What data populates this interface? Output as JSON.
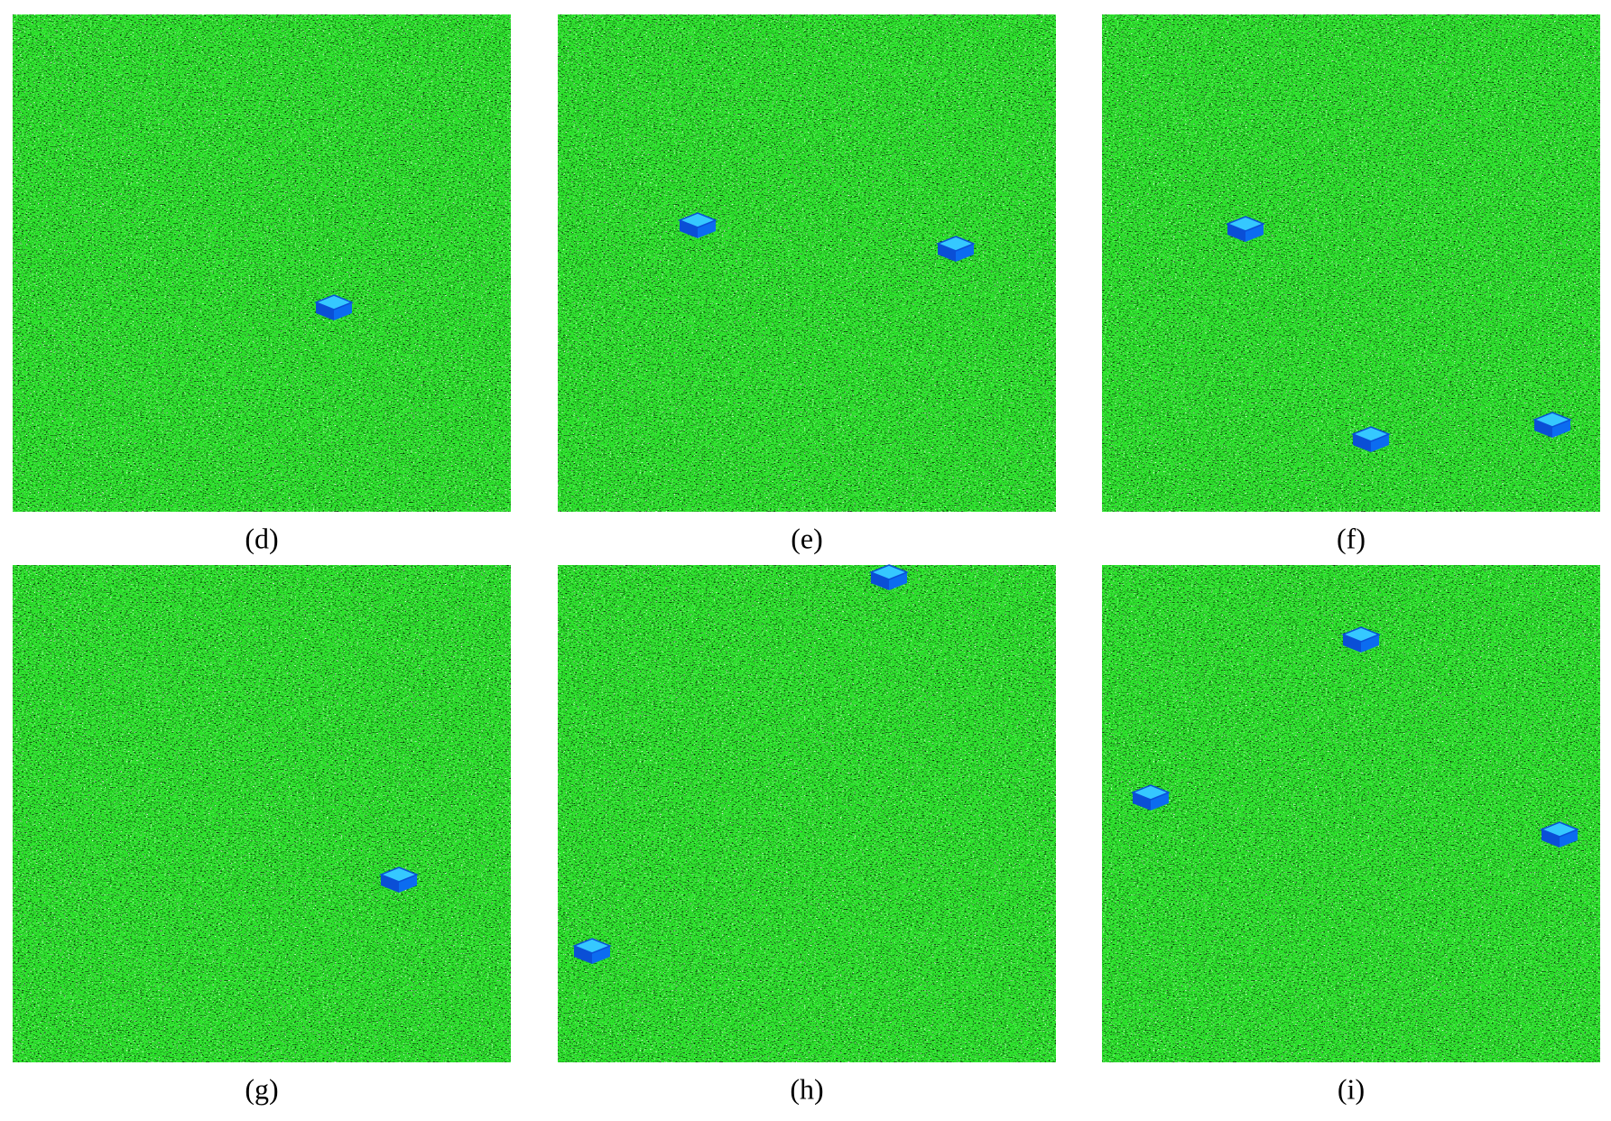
{
  "panels": [
    {
      "label": "(d)"
    },
    {
      "label": "(e)"
    },
    {
      "label": "(f)"
    },
    {
      "label": "(g)"
    },
    {
      "label": "(h)"
    },
    {
      "label": "(i)"
    }
  ]
}
